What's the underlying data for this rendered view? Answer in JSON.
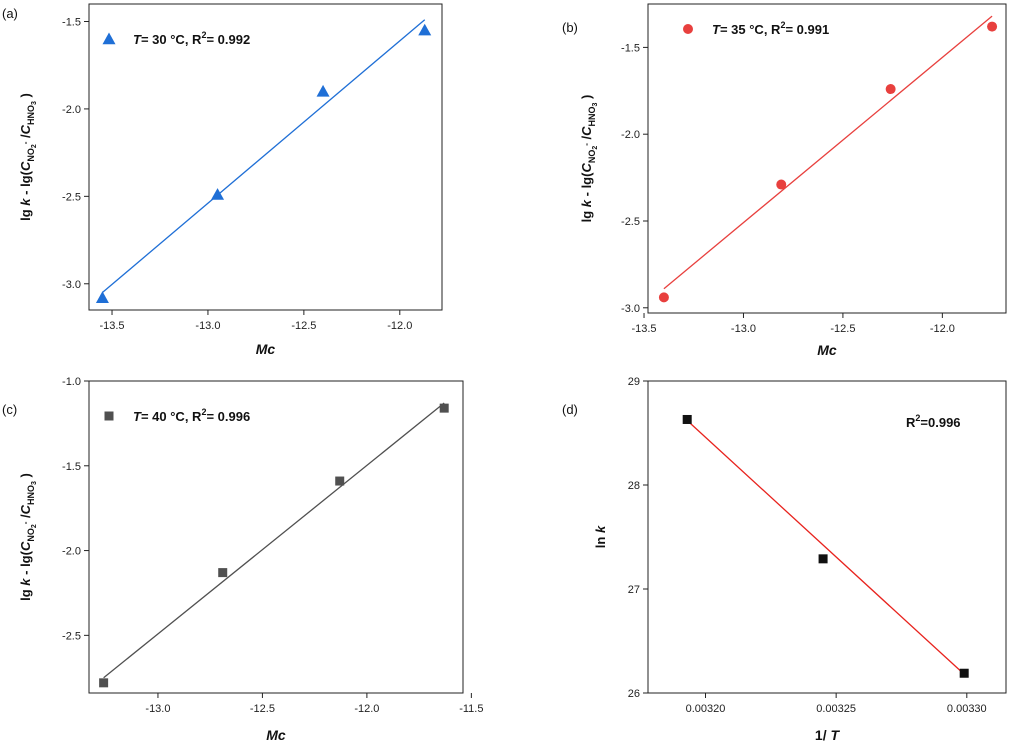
{
  "chart_data": [
    {
      "type": "scatter",
      "panel_label": "(a)",
      "title": "",
      "xlabel": "Mc",
      "ylabel": "lg k - lg(C_NO2- / C_HNO3)",
      "xlim": [
        -13.62,
        -11.78
      ],
      "ylim": [
        -3.15,
        -1.4
      ],
      "xticks": [
        -13.5,
        -13.0,
        -12.5,
        -12.0
      ],
      "xtick_labels": [
        "-13.5",
        "-13.0",
        "-12.5",
        "-12.0"
      ],
      "yticks": [
        -3.0,
        -2.5,
        -2.0,
        -1.5
      ],
      "ytick_labels": [
        "-3.0",
        "-2.5",
        "-2.0",
        "-1.5"
      ],
      "marker": "triangle",
      "color": "#1f6fd6",
      "series": [
        {
          "name": "T= 30 °C, R2= 0.992",
          "x": [
            -13.55,
            -12.95,
            -12.4,
            -11.87
          ],
          "y": [
            -3.08,
            -2.49,
            -1.9,
            -1.55
          ]
        }
      ],
      "fit_line": {
        "x": [
          -13.55,
          -11.87
        ],
        "y": [
          -3.05,
          -1.49
        ]
      },
      "legend": {
        "T_label": "T",
        "rest": "= 30 °C, R",
        "sup": "2",
        "tail": "= 0.992",
        "placement": "top-left"
      }
    },
    {
      "type": "scatter",
      "panel_label": "(b)",
      "title": "",
      "xlabel": "Mc",
      "ylabel": "lg k - lg(C_NO2- / C_HNO3)",
      "xlim": [
        -13.48,
        -11.68
      ],
      "ylim": [
        -3.03,
        -1.25
      ],
      "xticks": [
        -13.5,
        -13.0,
        -12.5,
        -12.0
      ],
      "xtick_labels": [
        "-13.5",
        "-13.0",
        "-12.5",
        "-12.0"
      ],
      "yticks": [
        -3.0,
        -2.5,
        -2.0,
        -1.5
      ],
      "ytick_labels": [
        "-3.0",
        "-2.5",
        "-2.0",
        "-1.5"
      ],
      "marker": "circle",
      "color": "#e8403e",
      "series": [
        {
          "name": "T= 35 °C, R2= 0.991",
          "x": [
            -13.4,
            -12.81,
            -12.26,
            -11.75
          ],
          "y": [
            -2.94,
            -2.29,
            -1.74,
            -1.38
          ]
        }
      ],
      "fit_line": {
        "x": [
          -13.4,
          -11.75
        ],
        "y": [
          -2.89,
          -1.32
        ]
      },
      "legend": {
        "T_label": "T",
        "rest": "= 35 °C, R",
        "sup": "2",
        "tail": "= 0.991",
        "placement": "top-left"
      }
    },
    {
      "type": "scatter",
      "panel_label": "(c)",
      "title": "",
      "xlabel": "Mc",
      "ylabel": "lg k - lg(C_NO2- / C_HNO3)",
      "xlim": [
        -13.33,
        -11.54
      ],
      "ylim": [
        -2.84,
        -1.0
      ],
      "xticks": [
        -13.0,
        -12.5,
        -12.0,
        -11.5
      ],
      "xtick_labels": [
        "-13.0",
        "-12.5",
        "-12.0",
        "-11.5"
      ],
      "yticks": [
        -2.5,
        -2.0,
        -1.5,
        -1.0
      ],
      "ytick_labels": [
        "-2.5",
        "-2.0",
        "-1.5",
        "-1.0"
      ],
      "marker": "square",
      "color": "#505050",
      "series": [
        {
          "name": "T= 40 °C, R2= 0.996",
          "x": [
            -13.26,
            -12.69,
            -12.13,
            -11.63
          ],
          "y": [
            -2.78,
            -2.13,
            -1.59,
            -1.16
          ]
        }
      ],
      "fit_line": {
        "x": [
          -13.26,
          -11.63
        ],
        "y": [
          -2.75,
          -1.13
        ]
      },
      "legend": {
        "T_label": "T",
        "rest": "= 40 °C, R",
        "sup": "2",
        "tail": "= 0.996",
        "placement": "top-left"
      }
    },
    {
      "type": "scatter",
      "panel_label": "(d)",
      "title": "",
      "xlabel": "1/ T",
      "ylabel": "ln k",
      "xlim": [
        0.003178,
        0.003315
      ],
      "ylim": [
        26.0,
        29.0
      ],
      "xticks": [
        0.0032,
        0.00325,
        0.0033
      ],
      "xtick_labels": [
        "0.00320",
        "0.00325",
        "0.00330"
      ],
      "yticks": [
        26,
        27,
        28,
        29
      ],
      "ytick_labels": [
        "26",
        "27",
        "28",
        "29"
      ],
      "marker": "square",
      "color": "#111111",
      "line_color": "#e8221d",
      "series": [
        {
          "name": "ln k",
          "x": [
            0.003193,
            0.003245,
            0.003299
          ],
          "y": [
            28.63,
            27.29,
            26.19
          ]
        }
      ],
      "fit_line": {
        "x": [
          0.003193,
          0.003299
        ],
        "y": [
          28.62,
          26.18
        ]
      },
      "legend": {
        "T_label": "",
        "rest": "R",
        "sup": "2",
        "tail": "=0.996",
        "placement": "top-right"
      }
    }
  ]
}
